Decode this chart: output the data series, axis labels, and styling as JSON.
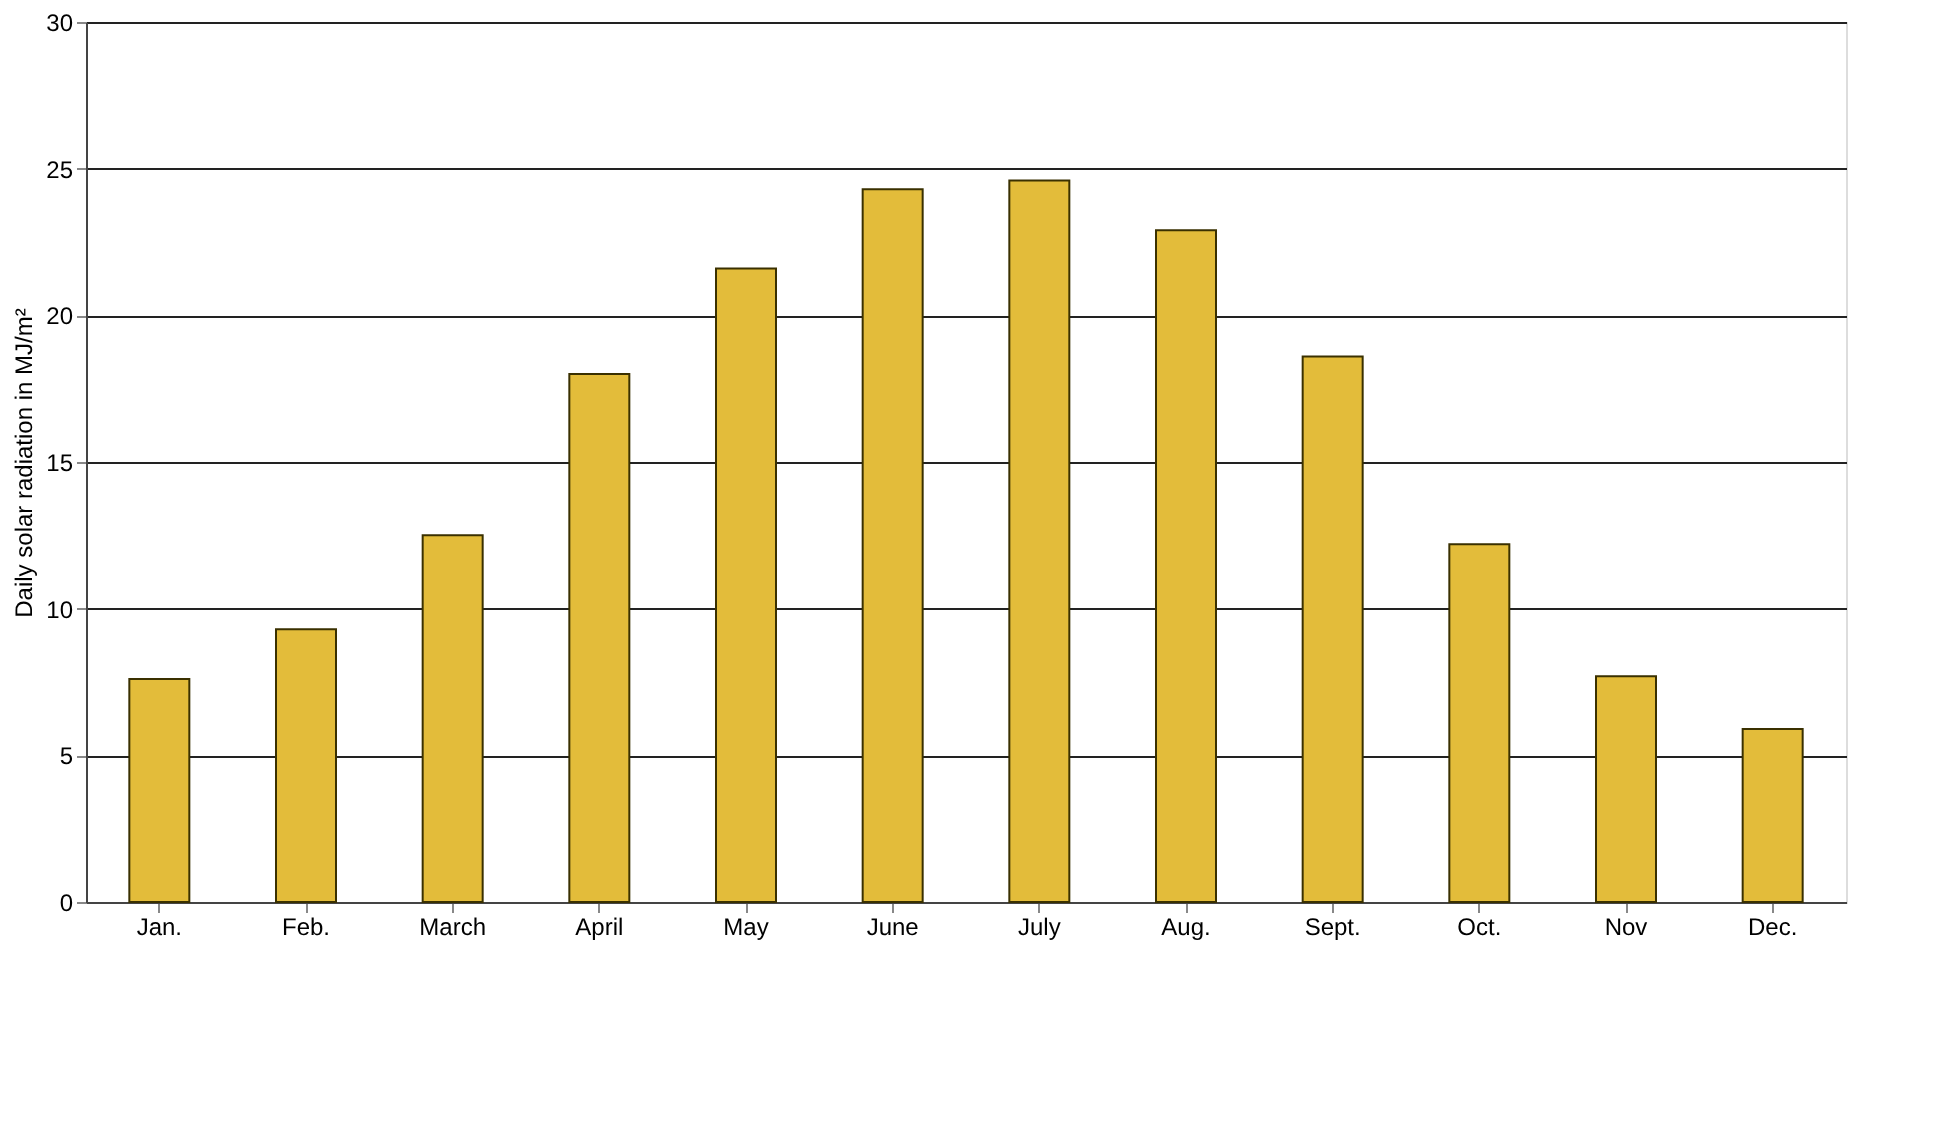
{
  "chart_data": {
    "type": "bar",
    "ylabel": "Daily solar radiation in MJ/m²",
    "categories": [
      "Jan.",
      "Feb.",
      "March",
      "April",
      "May",
      "June",
      "July",
      "Aug.",
      "Sept.",
      "Oct.",
      "Nov",
      "Dec."
    ],
    "values": [
      7.6,
      9.3,
      12.5,
      18,
      21.6,
      24.3,
      24.6,
      22.9,
      18.6,
      12.2,
      7.7,
      5.9
    ],
    "color": "#e3bc3a",
    "ylim": [
      0,
      30
    ],
    "yticks": [
      0,
      5,
      10,
      15,
      20,
      25,
      30
    ],
    "grid": "y"
  }
}
